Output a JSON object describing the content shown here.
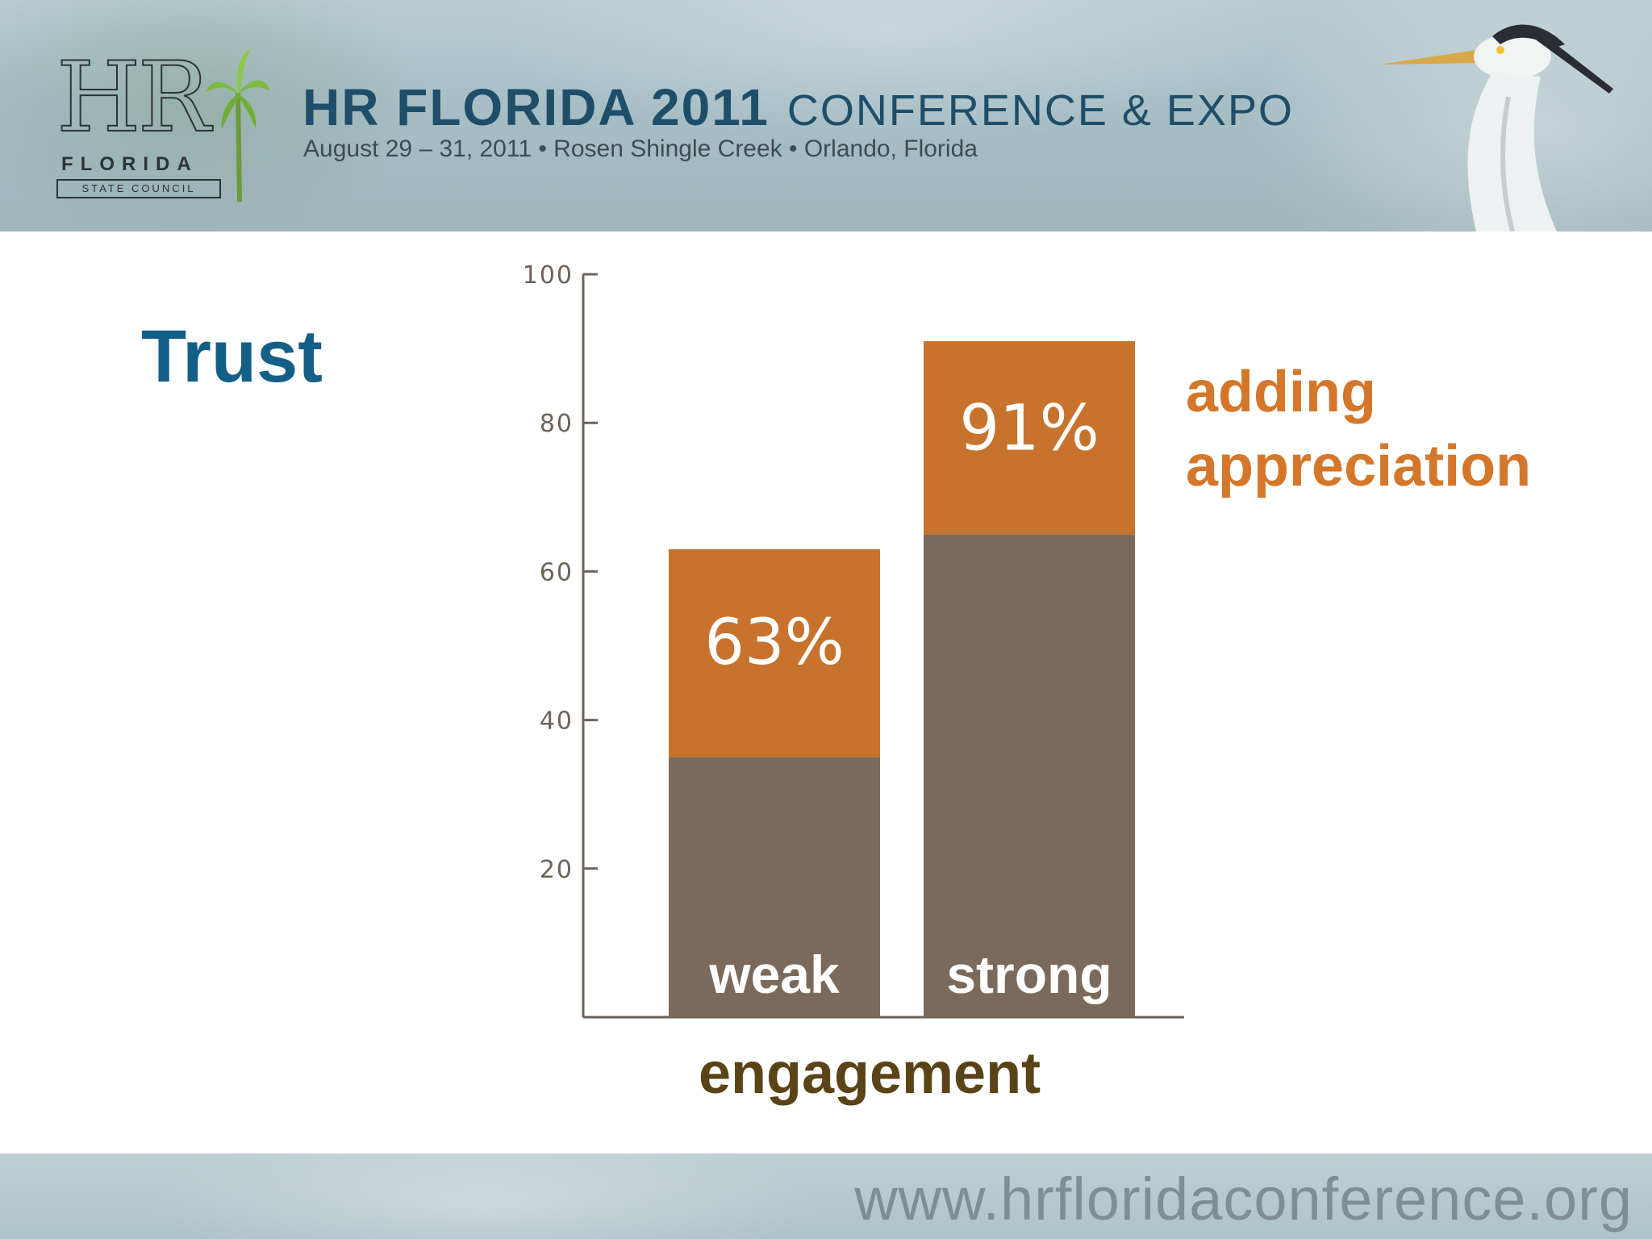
{
  "banner": {
    "logo_letters": "HR",
    "logo_name": "FLORIDA",
    "logo_sub": "STATE COUNCIL",
    "title_strong": "HR FLORIDA 2011",
    "title_light": "CONFERENCE & EXPO",
    "subtitle": "August 29 – 31, 2011   •   Rosen Shingle Creek   •   Orlando, Florida"
  },
  "slide": {
    "heading": "Trust",
    "annotation_line1": "adding",
    "annotation_line2": "appreciation",
    "x_axis_title": "engagement"
  },
  "footer": {
    "url": "www.hrfloridaconference.org"
  },
  "colors": {
    "base": "#7b6a5c",
    "added": "#c8732d",
    "axis": "#6f6256",
    "heading": "#145f87",
    "annotation": "#d4772a",
    "axis_title": "#5a4417"
  },
  "chart_data": {
    "type": "bar",
    "stacked": true,
    "categories": [
      "weak",
      "strong"
    ],
    "series": [
      {
        "values": [
          35,
          65
        ]
      },
      {
        "values": [
          28,
          26
        ]
      }
    ],
    "totals_labels": [
      "63%",
      "91%"
    ],
    "totals": [
      63,
      91
    ],
    "ylim": [
      0,
      100
    ],
    "yticks": [
      20,
      40,
      60,
      80,
      100
    ],
    "xlabel": "engagement",
    "ylabel": "",
    "grid": false
  }
}
